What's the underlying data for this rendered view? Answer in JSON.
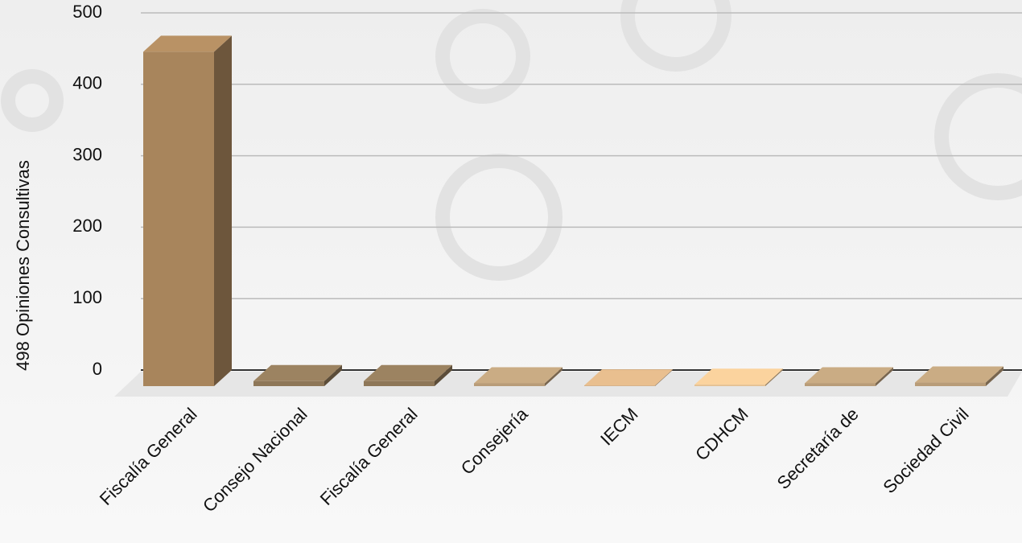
{
  "chart_data": {
    "type": "bar3d",
    "y_label": "498 Opiniones Consultivas",
    "categories": [
      "Fiscalía General",
      "Consejo Nacional",
      "Fiscalía General",
      "Consejería",
      "IECM",
      "CDHCM",
      "Secretaría de",
      "Sociedad Civil"
    ],
    "values": [
      468,
      7,
      7,
      4,
      1,
      2,
      4,
      5
    ],
    "colors": [
      "#a8855c",
      "#8e7758",
      "#8e7758",
      "#b89c78",
      "#d4ae82",
      "#e4c090",
      "#b89c78",
      "#b89c78"
    ],
    "ylim": [
      0,
      500
    ],
    "yticks": [
      0,
      100,
      200,
      300,
      400,
      500
    ],
    "grid": true
  }
}
